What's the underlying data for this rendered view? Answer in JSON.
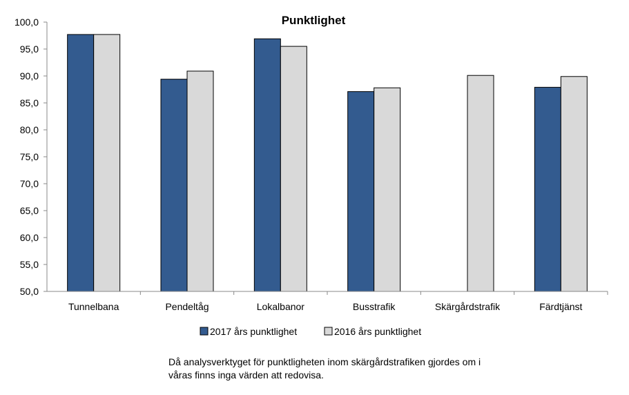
{
  "chart_data": {
    "type": "bar",
    "title": "Punktlighet",
    "categories": [
      "Tunnelbana",
      "Pendeltåg",
      "Lokalbanor",
      "Busstrafik",
      "Skärgårdstrafik",
      "Färdtjänst"
    ],
    "series": [
      {
        "name": "2017 års punktlighet",
        "color": "#335B8F",
        "values": [
          97.7,
          89.4,
          96.9,
          87.1,
          null,
          87.9
        ]
      },
      {
        "name": "2016 års punktlighet",
        "color": "#D9D9D9",
        "values": [
          97.7,
          90.9,
          95.5,
          87.8,
          90.1,
          89.9
        ]
      }
    ],
    "ylim": [
      50,
      100
    ],
    "yticks": [
      "50,0",
      "55,0",
      "60,0",
      "65,0",
      "70,0",
      "75,0",
      "80,0",
      "85,0",
      "90,0",
      "95,0",
      "100,0"
    ],
    "xlabel": "",
    "ylabel": "",
    "legend_position": "bottom"
  },
  "note": {
    "line1": "Då analysverktyget för punktligheten inom skärgårdstrafiken gjordes om i",
    "line2": "våras finns inga värden att redovisa."
  }
}
